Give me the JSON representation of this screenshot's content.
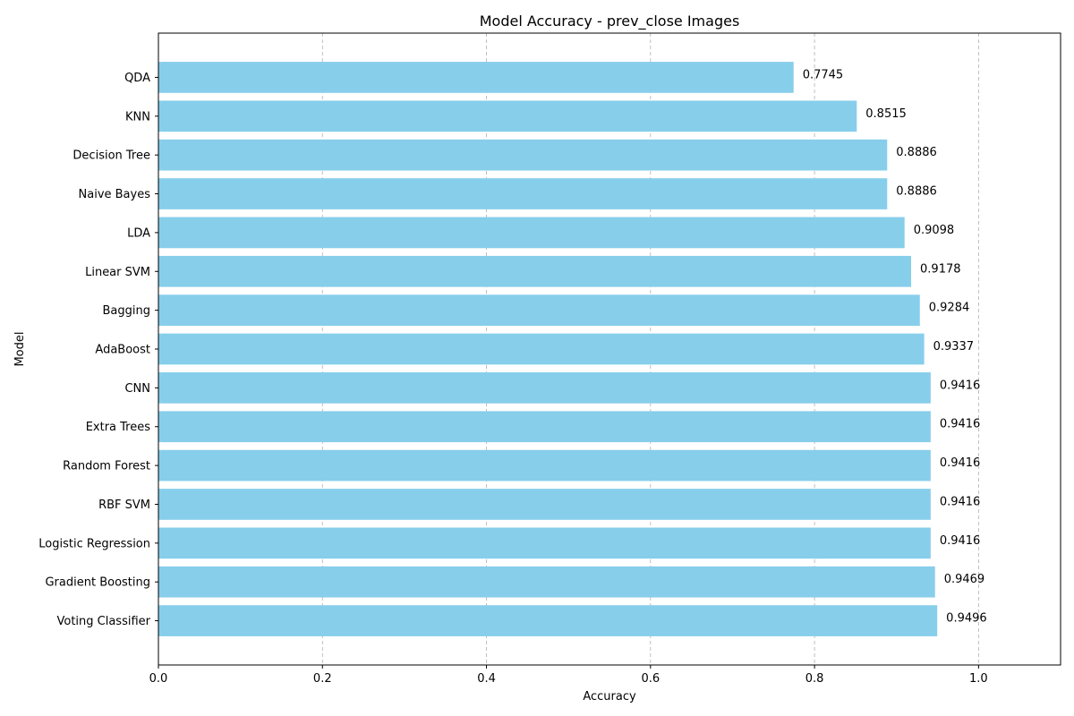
{
  "chart_data": {
    "type": "bar",
    "orientation": "horizontal",
    "title": "Model Accuracy - prev_close Images",
    "xlabel": "Accuracy",
    "ylabel": "Model",
    "xlim": [
      0,
      1.1
    ],
    "xticks": [
      0.0,
      0.2,
      0.4,
      0.6,
      0.8,
      1.0
    ],
    "xtick_labels": [
      "0.0",
      "0.2",
      "0.4",
      "0.6",
      "0.8",
      "1.0"
    ],
    "grid": "x-axis dashed",
    "bar_color": "#87ceeb",
    "categories": [
      "Voting Classifier",
      "Gradient Boosting",
      "Logistic Regression",
      "RBF SVM",
      "Random Forest",
      "Extra Trees",
      "CNN",
      "AdaBoost",
      "Bagging",
      "Linear SVM",
      "LDA",
      "Naive Bayes",
      "Decision Tree",
      "KNN",
      "QDA"
    ],
    "values": [
      0.9496,
      0.9469,
      0.9416,
      0.9416,
      0.9416,
      0.9416,
      0.9416,
      0.9337,
      0.9284,
      0.9178,
      0.9098,
      0.8886,
      0.8886,
      0.8515,
      0.7745
    ],
    "value_labels": [
      "0.9496",
      "0.9469",
      "0.9416",
      "0.9416",
      "0.9416",
      "0.9416",
      "0.9416",
      "0.9337",
      "0.9284",
      "0.9178",
      "0.9098",
      "0.8886",
      "0.8886",
      "0.8515",
      "0.7745"
    ]
  }
}
